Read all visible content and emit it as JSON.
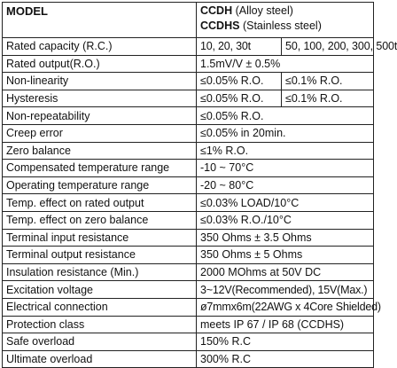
{
  "header": {
    "model_label": "MODEL",
    "ccdh_code": "CCDH",
    "ccdh_desc": "(Alloy steel)",
    "ccdhs_code": "CCDHS",
    "ccdhs_desc": "(Stainless steel)"
  },
  "rows": [
    {
      "label": "Rated capacity (R.C.)",
      "value_a": "10, 20, 30t",
      "value_b": "50, 100, 200, 300, 500t"
    },
    {
      "label": "Rated output(R.O.)",
      "value": "1.5mV/V ± 0.5%"
    },
    {
      "label": "Non-linearity",
      "value_a": "≤0.05% R.O.",
      "value_b": "≤0.1% R.O."
    },
    {
      "label": "Hysteresis",
      "value_a": "≤0.05% R.O.",
      "value_b": "≤0.1% R.O."
    },
    {
      "label": "Non-repeatability",
      "value": "≤0.05% R.O."
    },
    {
      "label": "Creep error",
      "value": "≤0.05% in 20min."
    },
    {
      "label": "Zero balance",
      "value": "≤1% R.O."
    },
    {
      "label": "Compensated temperature range",
      "value": "-10 ~ 70°C"
    },
    {
      "label": "Operating temperature range",
      "value": "-20 ~ 80°C"
    },
    {
      "label": "Temp. effect on rated output",
      "value": "≤0.03% LOAD/10°C"
    },
    {
      "label": "Temp. effect on zero balance",
      "value": "≤0.03% R.O./10°C"
    },
    {
      "label": "Terminal input resistance",
      "value": "350 Ohms ± 3.5 Ohms"
    },
    {
      "label": "Terminal output resistance",
      "value": "350 Ohms ± 5 Ohms"
    },
    {
      "label": "Insulation resistance (Min.)",
      "value": "2000 MOhms at 50V DC"
    },
    {
      "label": "Excitation voltage",
      "value": "3~12V(Recommended), 15V(Max.)"
    },
    {
      "label": "Electrical connection",
      "value": "ø7mmx6m(22AWG x 4Core Shielded)"
    },
    {
      "label": "Protection class",
      "value": "meets IP 67 / IP 68 (CCDHS)"
    },
    {
      "label": "Safe overload",
      "value": "150% R.C"
    },
    {
      "label": "Ultimate overload",
      "value": "300% R.C"
    }
  ]
}
